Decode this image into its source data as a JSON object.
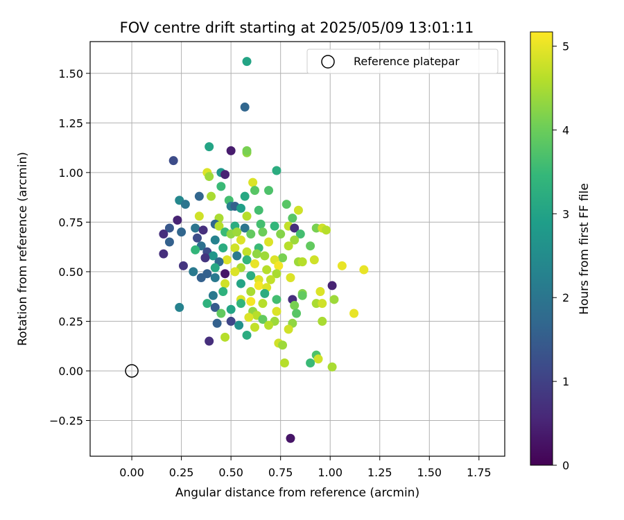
{
  "chart_data": {
    "type": "scatter",
    "title": "FOV centre drift starting at 2025/05/09 13:01:11",
    "xlabel": "Angular distance from reference (arcmin)",
    "ylabel": "Rotation from reference (arcmin)",
    "xlim": [
      -0.21,
      1.88
    ],
    "ylim": [
      -0.43,
      1.66
    ],
    "xticks": [
      "0.00",
      "0.25",
      "0.50",
      "0.75",
      "1.00",
      "1.25",
      "1.50",
      "1.75"
    ],
    "yticks": [
      "−0.25",
      "0.00",
      "0.25",
      "0.50",
      "0.75",
      "1.00",
      "1.25",
      "1.50"
    ],
    "grid": true,
    "legend": {
      "location": "upper right",
      "entries": [
        "Reference platepar"
      ]
    },
    "colorbar": {
      "label": "Hours from first FF file",
      "ticks": [
        "0",
        "1",
        "2",
        "3",
        "4",
        "5"
      ],
      "range": [
        0,
        5.17
      ],
      "colormap": "viridis"
    },
    "reference": {
      "x": 0.0,
      "y": 0.0,
      "label": "Reference platepar"
    },
    "series": [
      {
        "points": [
          {
            "x": 0.58,
            "y": 1.56,
            "t": 3.0
          },
          {
            "x": 0.57,
            "y": 1.33,
            "t": 1.7
          },
          {
            "x": 0.39,
            "y": 1.13,
            "t": 3.0
          },
          {
            "x": 0.5,
            "y": 1.11,
            "t": 0.4
          },
          {
            "x": 0.58,
            "y": 1.1,
            "t": 4.3
          },
          {
            "x": 0.58,
            "y": 1.11,
            "t": 4.1
          },
          {
            "x": 0.21,
            "y": 1.06,
            "t": 1.2
          },
          {
            "x": 0.73,
            "y": 1.01,
            "t": 3.2
          },
          {
            "x": 0.38,
            "y": 1.0,
            "t": 4.9
          },
          {
            "x": 0.45,
            "y": 1.0,
            "t": 2.7
          },
          {
            "x": 0.47,
            "y": 0.99,
            "t": 0.5
          },
          {
            "x": 0.39,
            "y": 0.98,
            "t": 4.4
          },
          {
            "x": 0.61,
            "y": 0.95,
            "t": 4.9
          },
          {
            "x": 0.45,
            "y": 0.93,
            "t": 3.5
          },
          {
            "x": 0.62,
            "y": 0.91,
            "t": 3.8
          },
          {
            "x": 0.69,
            "y": 0.91,
            "t": 3.7
          },
          {
            "x": 0.57,
            "y": 0.88,
            "t": 3.1
          },
          {
            "x": 0.34,
            "y": 0.88,
            "t": 1.7
          },
          {
            "x": 0.4,
            "y": 0.88,
            "t": 4.5
          },
          {
            "x": 0.49,
            "y": 0.86,
            "t": 3.6
          },
          {
            "x": 0.24,
            "y": 0.86,
            "t": 2.4
          },
          {
            "x": 0.27,
            "y": 0.84,
            "t": 2.0
          },
          {
            "x": 0.5,
            "y": 0.83,
            "t": 2.2
          },
          {
            "x": 0.52,
            "y": 0.83,
            "t": 1.6
          },
          {
            "x": 0.55,
            "y": 0.82,
            "t": 2.9
          },
          {
            "x": 0.64,
            "y": 0.81,
            "t": 3.6
          },
          {
            "x": 0.78,
            "y": 0.84,
            "t": 3.8
          },
          {
            "x": 0.84,
            "y": 0.81,
            "t": 4.8
          },
          {
            "x": 0.34,
            "y": 0.78,
            "t": 4.8
          },
          {
            "x": 0.44,
            "y": 0.77,
            "t": 4.5
          },
          {
            "x": 0.58,
            "y": 0.78,
            "t": 4.6
          },
          {
            "x": 0.81,
            "y": 0.77,
            "t": 3.8
          },
          {
            "x": 0.23,
            "y": 0.76,
            "t": 0.5
          },
          {
            "x": 0.42,
            "y": 0.74,
            "t": 1.7
          },
          {
            "x": 0.44,
            "y": 0.73,
            "t": 4.6
          },
          {
            "x": 0.52,
            "y": 0.73,
            "t": 3.2
          },
          {
            "x": 0.57,
            "y": 0.72,
            "t": 2.0
          },
          {
            "x": 0.65,
            "y": 0.74,
            "t": 3.6
          },
          {
            "x": 0.72,
            "y": 0.73,
            "t": 3.4
          },
          {
            "x": 0.79,
            "y": 0.73,
            "t": 4.7
          },
          {
            "x": 0.82,
            "y": 0.72,
            "t": 0.7
          },
          {
            "x": 0.19,
            "y": 0.72,
            "t": 1.4
          },
          {
            "x": 0.32,
            "y": 0.72,
            "t": 2.0
          },
          {
            "x": 0.36,
            "y": 0.71,
            "t": 0.7
          },
          {
            "x": 0.93,
            "y": 0.72,
            "t": 4.1
          },
          {
            "x": 0.96,
            "y": 0.72,
            "t": 4.8
          },
          {
            "x": 0.98,
            "y": 0.71,
            "t": 4.6
          },
          {
            "x": 0.16,
            "y": 0.69,
            "t": 0.7
          },
          {
            "x": 0.25,
            "y": 0.7,
            "t": 1.7
          },
          {
            "x": 0.47,
            "y": 0.7,
            "t": 3.5
          },
          {
            "x": 0.5,
            "y": 0.69,
            "t": 4.3
          },
          {
            "x": 0.53,
            "y": 0.7,
            "t": 4.4
          },
          {
            "x": 0.6,
            "y": 0.69,
            "t": 3.9
          },
          {
            "x": 0.66,
            "y": 0.7,
            "t": 4.0
          },
          {
            "x": 0.75,
            "y": 0.69,
            "t": 4.2
          },
          {
            "x": 0.85,
            "y": 0.69,
            "t": 3.6
          },
          {
            "x": 0.33,
            "y": 0.67,
            "t": 1.2
          },
          {
            "x": 0.42,
            "y": 0.66,
            "t": 2.3
          },
          {
            "x": 0.55,
            "y": 0.66,
            "t": 4.9
          },
          {
            "x": 0.69,
            "y": 0.65,
            "t": 4.9
          },
          {
            "x": 0.82,
            "y": 0.66,
            "t": 4.4
          },
          {
            "x": 0.19,
            "y": 0.65,
            "t": 1.6
          },
          {
            "x": 0.35,
            "y": 0.63,
            "t": 1.9
          },
          {
            "x": 0.46,
            "y": 0.62,
            "t": 3.2
          },
          {
            "x": 0.52,
            "y": 0.62,
            "t": 4.8
          },
          {
            "x": 0.64,
            "y": 0.62,
            "t": 3.5
          },
          {
            "x": 0.79,
            "y": 0.63,
            "t": 4.6
          },
          {
            "x": 0.9,
            "y": 0.63,
            "t": 3.9
          },
          {
            "x": 0.32,
            "y": 0.61,
            "t": 3.4
          },
          {
            "x": 0.38,
            "y": 0.6,
            "t": 1.2
          },
          {
            "x": 0.58,
            "y": 0.6,
            "t": 4.7
          },
          {
            "x": 0.63,
            "y": 0.59,
            "t": 4.3
          },
          {
            "x": 0.16,
            "y": 0.59,
            "t": 0.7
          },
          {
            "x": 0.41,
            "y": 0.58,
            "t": 2.7
          },
          {
            "x": 0.53,
            "y": 0.58,
            "t": 2.1
          },
          {
            "x": 0.67,
            "y": 0.58,
            "t": 4.4
          },
          {
            "x": 0.76,
            "y": 0.57,
            "t": 4.1
          },
          {
            "x": 0.37,
            "y": 0.57,
            "t": 0.8
          },
          {
            "x": 0.48,
            "y": 0.56,
            "t": 4.9
          },
          {
            "x": 0.58,
            "y": 0.56,
            "t": 3.4
          },
          {
            "x": 0.72,
            "y": 0.56,
            "t": 4.9
          },
          {
            "x": 0.84,
            "y": 0.55,
            "t": 4.4
          },
          {
            "x": 0.86,
            "y": 0.55,
            "t": 4.6
          },
          {
            "x": 0.92,
            "y": 0.56,
            "t": 4.8
          },
          {
            "x": 0.44,
            "y": 0.55,
            "t": 1.8
          },
          {
            "x": 0.62,
            "y": 0.54,
            "t": 5.0
          },
          {
            "x": 0.74,
            "y": 0.53,
            "t": 5.1
          },
          {
            "x": 0.26,
            "y": 0.53,
            "t": 0.8
          },
          {
            "x": 0.42,
            "y": 0.52,
            "t": 3.1
          },
          {
            "x": 0.55,
            "y": 0.52,
            "t": 4.5
          },
          {
            "x": 0.68,
            "y": 0.51,
            "t": 4.6
          },
          {
            "x": 1.06,
            "y": 0.53,
            "t": 5.0
          },
          {
            "x": 1.17,
            "y": 0.51,
            "t": 5.0
          },
          {
            "x": 0.31,
            "y": 0.5,
            "t": 2.1
          },
          {
            "x": 0.38,
            "y": 0.49,
            "t": 1.6
          },
          {
            "x": 0.47,
            "y": 0.49,
            "t": 0.3
          },
          {
            "x": 0.52,
            "y": 0.5,
            "t": 4.9
          },
          {
            "x": 0.6,
            "y": 0.48,
            "t": 3.2
          },
          {
            "x": 0.73,
            "y": 0.49,
            "t": 4.5
          },
          {
            "x": 0.35,
            "y": 0.47,
            "t": 1.6
          },
          {
            "x": 0.42,
            "y": 0.47,
            "t": 2.1
          },
          {
            "x": 0.64,
            "y": 0.46,
            "t": 4.9
          },
          {
            "x": 0.7,
            "y": 0.46,
            "t": 4.7
          },
          {
            "x": 0.8,
            "y": 0.47,
            "t": 4.9
          },
          {
            "x": 0.47,
            "y": 0.44,
            "t": 4.8
          },
          {
            "x": 0.55,
            "y": 0.44,
            "t": 3.0
          },
          {
            "x": 0.64,
            "y": 0.43,
            "t": 5.1
          },
          {
            "x": 0.68,
            "y": 0.42,
            "t": 4.9
          },
          {
            "x": 1.01,
            "y": 0.43,
            "t": 0.5
          },
          {
            "x": 0.46,
            "y": 0.4,
            "t": 3.3
          },
          {
            "x": 0.6,
            "y": 0.4,
            "t": 4.5
          },
          {
            "x": 0.67,
            "y": 0.39,
            "t": 3.2
          },
          {
            "x": 0.86,
            "y": 0.39,
            "t": 4.2
          },
          {
            "x": 0.95,
            "y": 0.4,
            "t": 4.9
          },
          {
            "x": 0.41,
            "y": 0.38,
            "t": 2.1
          },
          {
            "x": 0.55,
            "y": 0.36,
            "t": 4.9
          },
          {
            "x": 0.73,
            "y": 0.36,
            "t": 3.6
          },
          {
            "x": 0.81,
            "y": 0.36,
            "t": 0.7
          },
          {
            "x": 0.86,
            "y": 0.38,
            "t": 3.9
          },
          {
            "x": 1.02,
            "y": 0.36,
            "t": 4.4
          },
          {
            "x": 0.6,
            "y": 0.35,
            "t": 5.1
          },
          {
            "x": 0.38,
            "y": 0.34,
            "t": 3.3
          },
          {
            "x": 0.55,
            "y": 0.34,
            "t": 3.4
          },
          {
            "x": 0.66,
            "y": 0.34,
            "t": 4.6
          },
          {
            "x": 0.82,
            "y": 0.33,
            "t": 4.1
          },
          {
            "x": 0.93,
            "y": 0.34,
            "t": 4.5
          },
          {
            "x": 0.96,
            "y": 0.34,
            "t": 4.8
          },
          {
            "x": 0.42,
            "y": 0.32,
            "t": 1.5
          },
          {
            "x": 0.24,
            "y": 0.32,
            "t": 2.3
          },
          {
            "x": 0.5,
            "y": 0.31,
            "t": 3.0
          },
          {
            "x": 0.61,
            "y": 0.3,
            "t": 4.3
          },
          {
            "x": 0.73,
            "y": 0.3,
            "t": 4.9
          },
          {
            "x": 0.83,
            "y": 0.29,
            "t": 3.8
          },
          {
            "x": 0.45,
            "y": 0.29,
            "t": 3.9
          },
          {
            "x": 0.63,
            "y": 0.28,
            "t": 4.6
          },
          {
            "x": 1.12,
            "y": 0.29,
            "t": 5.0
          },
          {
            "x": 0.59,
            "y": 0.27,
            "t": 4.9
          },
          {
            "x": 0.66,
            "y": 0.26,
            "t": 3.9
          },
          {
            "x": 0.72,
            "y": 0.25,
            "t": 4.4
          },
          {
            "x": 0.96,
            "y": 0.25,
            "t": 4.5
          },
          {
            "x": 0.43,
            "y": 0.24,
            "t": 1.6
          },
          {
            "x": 0.5,
            "y": 0.25,
            "t": 1.1
          },
          {
            "x": 0.54,
            "y": 0.23,
            "t": 2.6
          },
          {
            "x": 0.62,
            "y": 0.22,
            "t": 4.7
          },
          {
            "x": 0.69,
            "y": 0.23,
            "t": 4.6
          },
          {
            "x": 0.81,
            "y": 0.24,
            "t": 4.3
          },
          {
            "x": 0.79,
            "y": 0.21,
            "t": 4.8
          },
          {
            "x": 0.58,
            "y": 0.18,
            "t": 3.2
          },
          {
            "x": 0.47,
            "y": 0.17,
            "t": 4.6
          },
          {
            "x": 0.39,
            "y": 0.15,
            "t": 0.7
          },
          {
            "x": 0.74,
            "y": 0.14,
            "t": 4.8
          },
          {
            "x": 0.76,
            "y": 0.13,
            "t": 4.4
          },
          {
            "x": 0.93,
            "y": 0.08,
            "t": 3.7
          },
          {
            "x": 0.94,
            "y": 0.06,
            "t": 4.8
          },
          {
            "x": 0.9,
            "y": 0.04,
            "t": 3.5
          },
          {
            "x": 0.77,
            "y": 0.04,
            "t": 4.6
          },
          {
            "x": 1.01,
            "y": 0.02,
            "t": 4.5
          },
          {
            "x": 0.8,
            "y": -0.34,
            "t": 0.3
          }
        ]
      }
    ]
  }
}
